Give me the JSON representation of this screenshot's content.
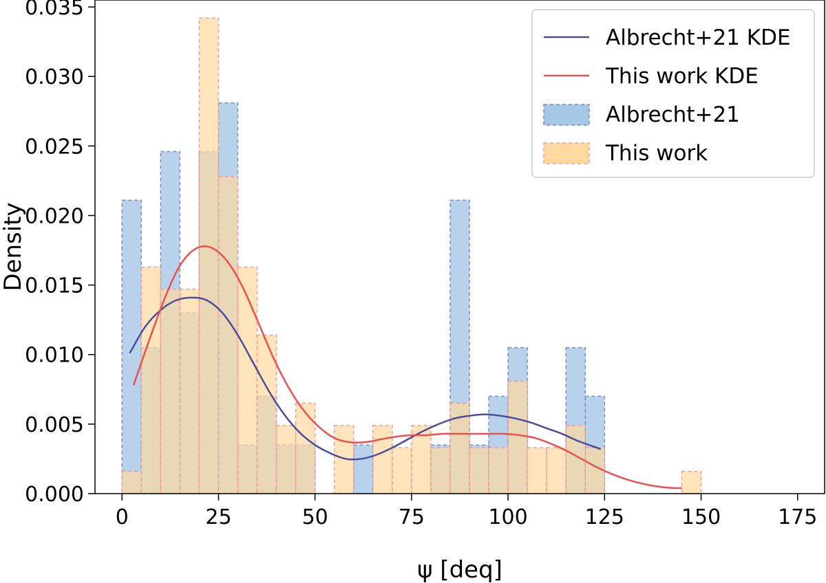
{
  "chart_data": {
    "type": "bar",
    "title": "",
    "xlabel": "ψ [deq]",
    "ylabel": "Density",
    "xlim": [
      -7,
      182
    ],
    "ylim": [
      0,
      0.0355
    ],
    "xticks": [
      0,
      25,
      50,
      75,
      100,
      125,
      150,
      175
    ],
    "xtick_labels": [
      "0",
      "25",
      "50",
      "75",
      "100",
      "125",
      "150",
      "175"
    ],
    "yticks": [
      0,
      0.005,
      0.01,
      0.015,
      0.02,
      0.025,
      0.03,
      0.035
    ],
    "ytick_labels": [
      "0.000",
      "0.005",
      "0.010",
      "0.015",
      "0.020",
      "0.025",
      "0.030",
      "0.035"
    ],
    "grid": false,
    "legend_position": "top-right",
    "bin_width": 5,
    "series": [
      {
        "name": "Albrecht+21",
        "kind": "histogram",
        "fill": "#a7c7e7",
        "edge": "#7e88c0",
        "opacity": 0.8,
        "bin_starts": [
          0,
          5,
          10,
          15,
          20,
          25,
          30,
          35,
          40,
          45,
          50,
          55,
          60,
          65,
          70,
          75,
          80,
          85,
          90,
          95,
          100,
          105,
          110,
          115,
          120
        ],
        "values": [
          0.0211,
          0.0105,
          0.0246,
          0.013,
          0.0246,
          0.0281,
          0.0035,
          0.007,
          0.0035,
          0.0035,
          0.0,
          0.0,
          0.0035,
          0.0,
          0.0,
          0.0,
          0.0035,
          0.0211,
          0.0035,
          0.007,
          0.0105,
          0.0,
          0.0,
          0.0105,
          0.007
        ]
      },
      {
        "name": "This work",
        "kind": "histogram",
        "fill": "#ffd9a0",
        "edge": "#ef9aa0",
        "opacity": 0.7,
        "bin_starts": [
          0,
          5,
          10,
          15,
          20,
          25,
          30,
          35,
          40,
          45,
          50,
          55,
          60,
          65,
          70,
          75,
          80,
          85,
          90,
          95,
          100,
          105,
          110,
          115,
          120,
          125,
          130,
          135,
          140,
          145
        ],
        "values": [
          0.0016,
          0.0163,
          0.0147,
          0.0147,
          0.0342,
          0.0228,
          0.0163,
          0.0114,
          0.0049,
          0.0065,
          0.0,
          0.0049,
          0.0,
          0.0049,
          0.0033,
          0.0049,
          0.0033,
          0.0065,
          0.0033,
          0.0033,
          0.0081,
          0.0033,
          0.0033,
          0.0049,
          0.0033,
          0.0,
          0.0,
          0.0,
          0.0,
          0.0016
        ]
      },
      {
        "name": "Albrecht+21 KDE",
        "kind": "line",
        "color": "#4b4d9a",
        "x": [
          2,
          6,
          10,
          14,
          18,
          22,
          26,
          30,
          34,
          38,
          42,
          46,
          50,
          54,
          58,
          62,
          66,
          70,
          74,
          78,
          82,
          86,
          90,
          94,
          98,
          102,
          106,
          110,
          114,
          118,
          122,
          124
        ],
        "y": [
          0.0101,
          0.012,
          0.0132,
          0.0139,
          0.0141,
          0.0139,
          0.013,
          0.0114,
          0.0094,
          0.0074,
          0.0057,
          0.0044,
          0.0035,
          0.0029,
          0.0025,
          0.0025,
          0.0028,
          0.0033,
          0.0039,
          0.0045,
          0.005,
          0.0054,
          0.0056,
          0.0057,
          0.0056,
          0.0054,
          0.0051,
          0.0047,
          0.0043,
          0.0038,
          0.0034,
          0.0032
        ]
      },
      {
        "name": "This work KDE",
        "kind": "line",
        "color": "#e9504f",
        "x": [
          3,
          7,
          11,
          15,
          19,
          23,
          27,
          31,
          35,
          39,
          43,
          47,
          51,
          55,
          59,
          63,
          67,
          71,
          75,
          79,
          83,
          87,
          91,
          95,
          99,
          103,
          107,
          111,
          115,
          119,
          123,
          127,
          131,
          135,
          139,
          143,
          145
        ],
        "y": [
          0.0078,
          0.011,
          0.014,
          0.0164,
          0.0176,
          0.0177,
          0.0168,
          0.015,
          0.0125,
          0.0099,
          0.0077,
          0.006,
          0.0048,
          0.004,
          0.0037,
          0.0037,
          0.0039,
          0.0041,
          0.0042,
          0.0042,
          0.0043,
          0.0043,
          0.0043,
          0.0043,
          0.0043,
          0.0042,
          0.004,
          0.0036,
          0.0031,
          0.0025,
          0.0019,
          0.0014,
          0.001,
          0.0007,
          0.0005,
          0.0004,
          0.0004
        ]
      }
    ],
    "legend": [
      {
        "label": "Albrecht+21 KDE",
        "kind": "line",
        "color": "#4b4d9a"
      },
      {
        "label": "This work KDE",
        "kind": "line",
        "color": "#e9504f"
      },
      {
        "label": "Albrecht+21",
        "kind": "patch",
        "fill": "#a7c7e7",
        "edge": "#7e88c0"
      },
      {
        "label": "This work",
        "kind": "patch",
        "fill": "#ffd9a0",
        "edge": "#ef9aa0"
      }
    ]
  }
}
